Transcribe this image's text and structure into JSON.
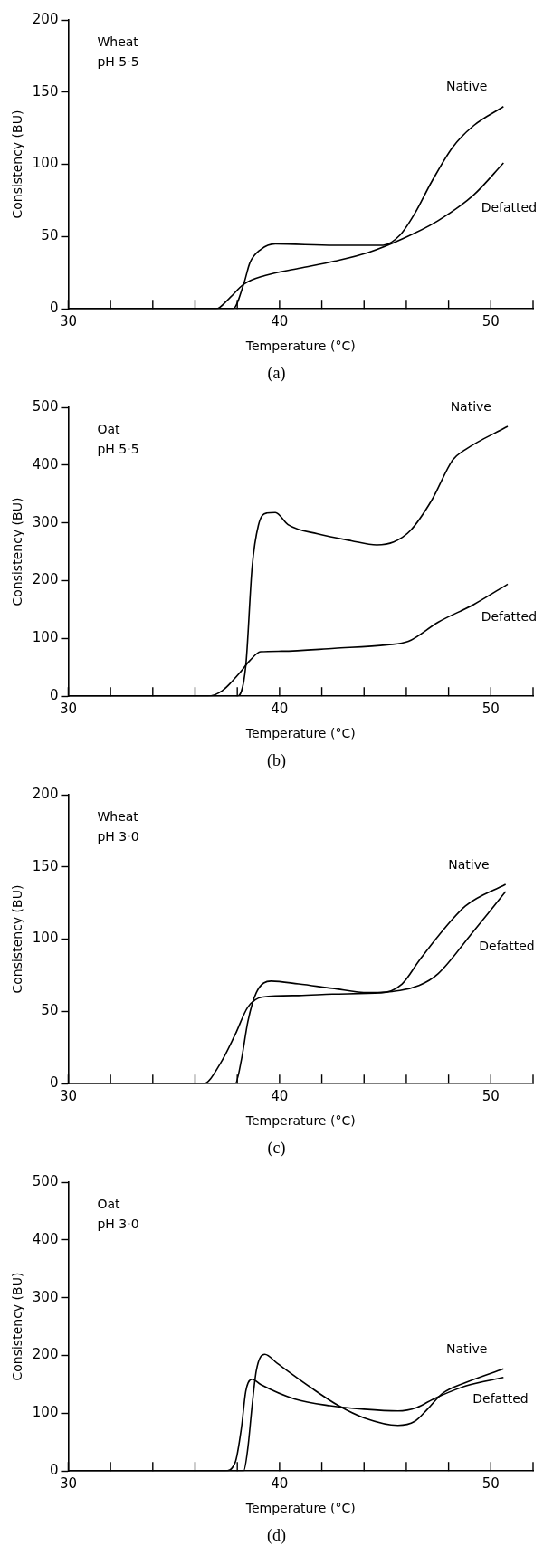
{
  "chart_data": [
    {
      "type": "line",
      "title": "(a)",
      "annotations": [
        "Wheat",
        "pH 5·5"
      ],
      "xlabel": "Temperature (°C)",
      "ylabel": "Consistency (BU)",
      "xlim": [
        30,
        52
      ],
      "xticks": [
        30,
        {
          "value": 32,
          "label": null
        },
        {
          "value": 34,
          "label": null
        },
        {
          "value": 36,
          "label": null
        },
        {
          "value": 38,
          "label": null
        },
        40,
        {
          "value": 42,
          "label": null
        },
        {
          "value": 44,
          "label": null
        },
        {
          "value": 46,
          "label": null
        },
        {
          "value": 48,
          "label": null
        },
        50,
        {
          "value": 52,
          "label": null
        }
      ],
      "ylim": [
        0,
        200
      ],
      "yticks": [
        0,
        50,
        100,
        150,
        200
      ],
      "grid": false,
      "marker": "none",
      "line_style": "solid",
      "series": [
        {
          "name": "Native",
          "color": "#000000",
          "x": [
            30,
            37.8,
            38.3,
            38.6,
            39.1,
            39.8,
            42.6,
            44.9,
            45.7,
            46.4,
            47.2,
            48.2,
            49.2,
            50.6
          ],
          "values": [
            0,
            0,
            17,
            32,
            41,
            45,
            44,
            44,
            51,
            66,
            88,
            112,
            127,
            140
          ]
        },
        {
          "name": "Defatted",
          "color": "#000000",
          "x": [
            30,
            37,
            37.6,
            38.3,
            39.3,
            40.9,
            42.6,
            44.2,
            45.9,
            47.5,
            49.2,
            50.6
          ],
          "values": [
            0,
            0,
            7,
            17,
            23,
            28,
            33,
            39,
            49,
            61,
            79,
            101
          ]
        }
      ]
    },
    {
      "type": "line",
      "title": "(b)",
      "annotations": [
        "Oat",
        "pH 5·5"
      ],
      "xlabel": "Temperature (°C)",
      "ylabel": "Consistency (BU)",
      "xlim": [
        30,
        52
      ],
      "xticks": [
        30,
        {
          "value": 32,
          "label": null
        },
        {
          "value": 34,
          "label": null
        },
        {
          "value": 36,
          "label": null
        },
        {
          "value": 38,
          "label": null
        },
        40,
        {
          "value": 42,
          "label": null
        },
        {
          "value": 44,
          "label": null
        },
        {
          "value": 46,
          "label": null
        },
        {
          "value": 48,
          "label": null
        },
        50,
        {
          "value": 52,
          "label": null
        }
      ],
      "ylim": [
        0,
        500
      ],
      "yticks": [
        0,
        100,
        200,
        300,
        400,
        500
      ],
      "grid": false,
      "marker": "none",
      "line_style": "solid",
      "series": [
        {
          "name": "Native",
          "color": "#000000",
          "x": [
            30,
            38,
            38.4,
            38.7,
            39,
            39.4,
            39.8,
            40.4,
            41.8,
            43.4,
            44.6,
            45.4,
            46.2,
            47.2,
            48.2,
            48.8,
            50.8
          ],
          "values": [
            0,
            0,
            52,
            223,
            296,
            317,
            318,
            297,
            281,
            269,
            262,
            267,
            287,
            339,
            409,
            427,
            467
          ]
        },
        {
          "name": "Defatted",
          "color": "#000000",
          "x": [
            30,
            36.6,
            37.3,
            38.1,
            38.6,
            39.1,
            40.1,
            42.6,
            45.1,
            46.1,
            47.5,
            49.2,
            50.8
          ],
          "values": [
            0,
            0,
            10,
            40,
            62,
            77,
            78,
            83,
            89,
            95,
            128,
            159,
            194
          ]
        }
      ]
    },
    {
      "type": "line",
      "title": "(c)",
      "annotations": [
        "Wheat",
        "pH 3·0"
      ],
      "xlabel": "Temperature (°C)",
      "ylabel": "Consistency (BU)",
      "xlim": [
        30,
        52
      ],
      "xticks": [
        30,
        {
          "value": 32,
          "label": null
        },
        {
          "value": 34,
          "label": null
        },
        {
          "value": 36,
          "label": null
        },
        {
          "value": 38,
          "label": null
        },
        40,
        {
          "value": 42,
          "label": null
        },
        {
          "value": 44,
          "label": null
        },
        {
          "value": 46,
          "label": null
        },
        {
          "value": 48,
          "label": null
        },
        50,
        {
          "value": 52,
          "label": null
        }
      ],
      "ylim": [
        0,
        200
      ],
      "yticks": [
        0,
        50,
        100,
        150,
        200
      ],
      "grid": false,
      "marker": "none",
      "line_style": "solid",
      "series": [
        {
          "name": "Native",
          "color": "#000000",
          "x": [
            30,
            37.9,
            38.2,
            38.5,
            38.9,
            39.6,
            40.9,
            42.5,
            44.2,
            44.8,
            45.8,
            46.6,
            47.5,
            48.8,
            50.7
          ],
          "values": [
            0,
            0,
            17,
            43,
            63,
            71,
            69,
            66,
            63,
            63,
            69,
            85,
            102,
            123,
            138
          ]
        },
        {
          "name": "Defatted",
          "color": "#000000",
          "x": [
            30,
            36.4,
            37.2,
            37.9,
            38.5,
            39.2,
            40.9,
            42.5,
            44.8,
            46.6,
            47.5,
            49.1,
            50.7
          ],
          "values": [
            0,
            0,
            14,
            34,
            53,
            60,
            61,
            62,
            63,
            68,
            76,
            104,
            133
          ]
        }
      ]
    },
    {
      "type": "line",
      "title": "(d)",
      "annotations": [
        "Oat",
        "pH 3·0"
      ],
      "xlabel": "Temperature (°C)",
      "ylabel": "Consistency (BU)",
      "xlim": [
        30,
        52
      ],
      "xticks": [
        30,
        {
          "value": 32,
          "label": null
        },
        {
          "value": 34,
          "label": null
        },
        {
          "value": 36,
          "label": null
        },
        {
          "value": 38,
          "label": null
        },
        40,
        {
          "value": 42,
          "label": null
        },
        {
          "value": 44,
          "label": null
        },
        {
          "value": 46,
          "label": null
        },
        {
          "value": 48,
          "label": null
        },
        50,
        {
          "value": 52,
          "label": null
        }
      ],
      "ylim": [
        0,
        500
      ],
      "yticks": [
        0,
        100,
        200,
        300,
        400,
        500
      ],
      "grid": false,
      "marker": "none",
      "line_style": "solid",
      "series": [
        {
          "name": "Native",
          "color": "#000000",
          "x": [
            30,
            38.3,
            38.5,
            38.7,
            38.9,
            39.3,
            39.9,
            41.5,
            42.8,
            44,
            45.6,
            46.4,
            47,
            47.7,
            48.8,
            50.6
          ],
          "values": [
            0,
            0,
            40,
            113,
            174,
            202,
            186,
            144,
            113,
            92,
            79,
            86,
            107,
            134,
            153,
            177
          ]
        },
        {
          "name": "Defatted",
          "color": "#000000",
          "x": [
            30,
            37.4,
            37.9,
            38.2,
            38.4,
            38.7,
            39.1,
            40.7,
            42.4,
            44,
            45.6,
            46.5,
            47.3,
            48.8,
            50.6
          ],
          "values": [
            0,
            0,
            15,
            76,
            138,
            159,
            150,
            125,
            113,
            107,
            104,
            110,
            125,
            147,
            162
          ]
        }
      ]
    }
  ]
}
